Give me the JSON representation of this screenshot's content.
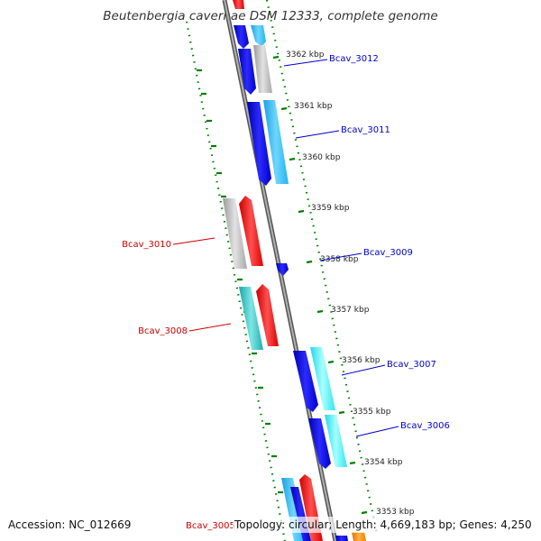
{
  "title": "Beutenbergia cavernae DSM 12333, complete genome",
  "footer": {
    "accession": "Accession: NC_012669",
    "topology": "Topology: circular; Length: 4,669,183 bp; Genes: 4,250"
  },
  "colors": {
    "forward_strand_label": "#0000cc",
    "reverse_strand_label": "#cc0000",
    "tick": "#008000",
    "backbone": "#888888"
  },
  "scale_ticks": [
    {
      "label": "3362 kbp",
      "kbp": 3362
    },
    {
      "label": "3361 kbp",
      "kbp": 3361
    },
    {
      "label": "3360 kbp",
      "kbp": 3360
    },
    {
      "label": "3359 kbp",
      "kbp": 3359
    },
    {
      "label": "3358 kbp",
      "kbp": 3358
    },
    {
      "label": "3357 kbp",
      "kbp": 3357
    },
    {
      "label": "3356 kbp",
      "kbp": 3356
    },
    {
      "label": "3355 kbp",
      "kbp": 3355
    },
    {
      "label": "3354 kbp",
      "kbp": 3354
    },
    {
      "label": "3353 kbp",
      "kbp": 3353
    }
  ],
  "gene_labels": [
    {
      "label": "Bcav_3012",
      "strand": "forward"
    },
    {
      "label": "Bcav_3011",
      "strand": "forward"
    },
    {
      "label": "Bcav_3010",
      "strand": "reverse"
    },
    {
      "label": "Bcav_3009",
      "strand": "forward"
    },
    {
      "label": "Bcav_3008",
      "strand": "reverse"
    },
    {
      "label": "Bcav_3007",
      "strand": "forward"
    },
    {
      "label": "Bcav_3006",
      "strand": "forward"
    },
    {
      "label": "Bcav_3005",
      "strand": "reverse"
    }
  ]
}
